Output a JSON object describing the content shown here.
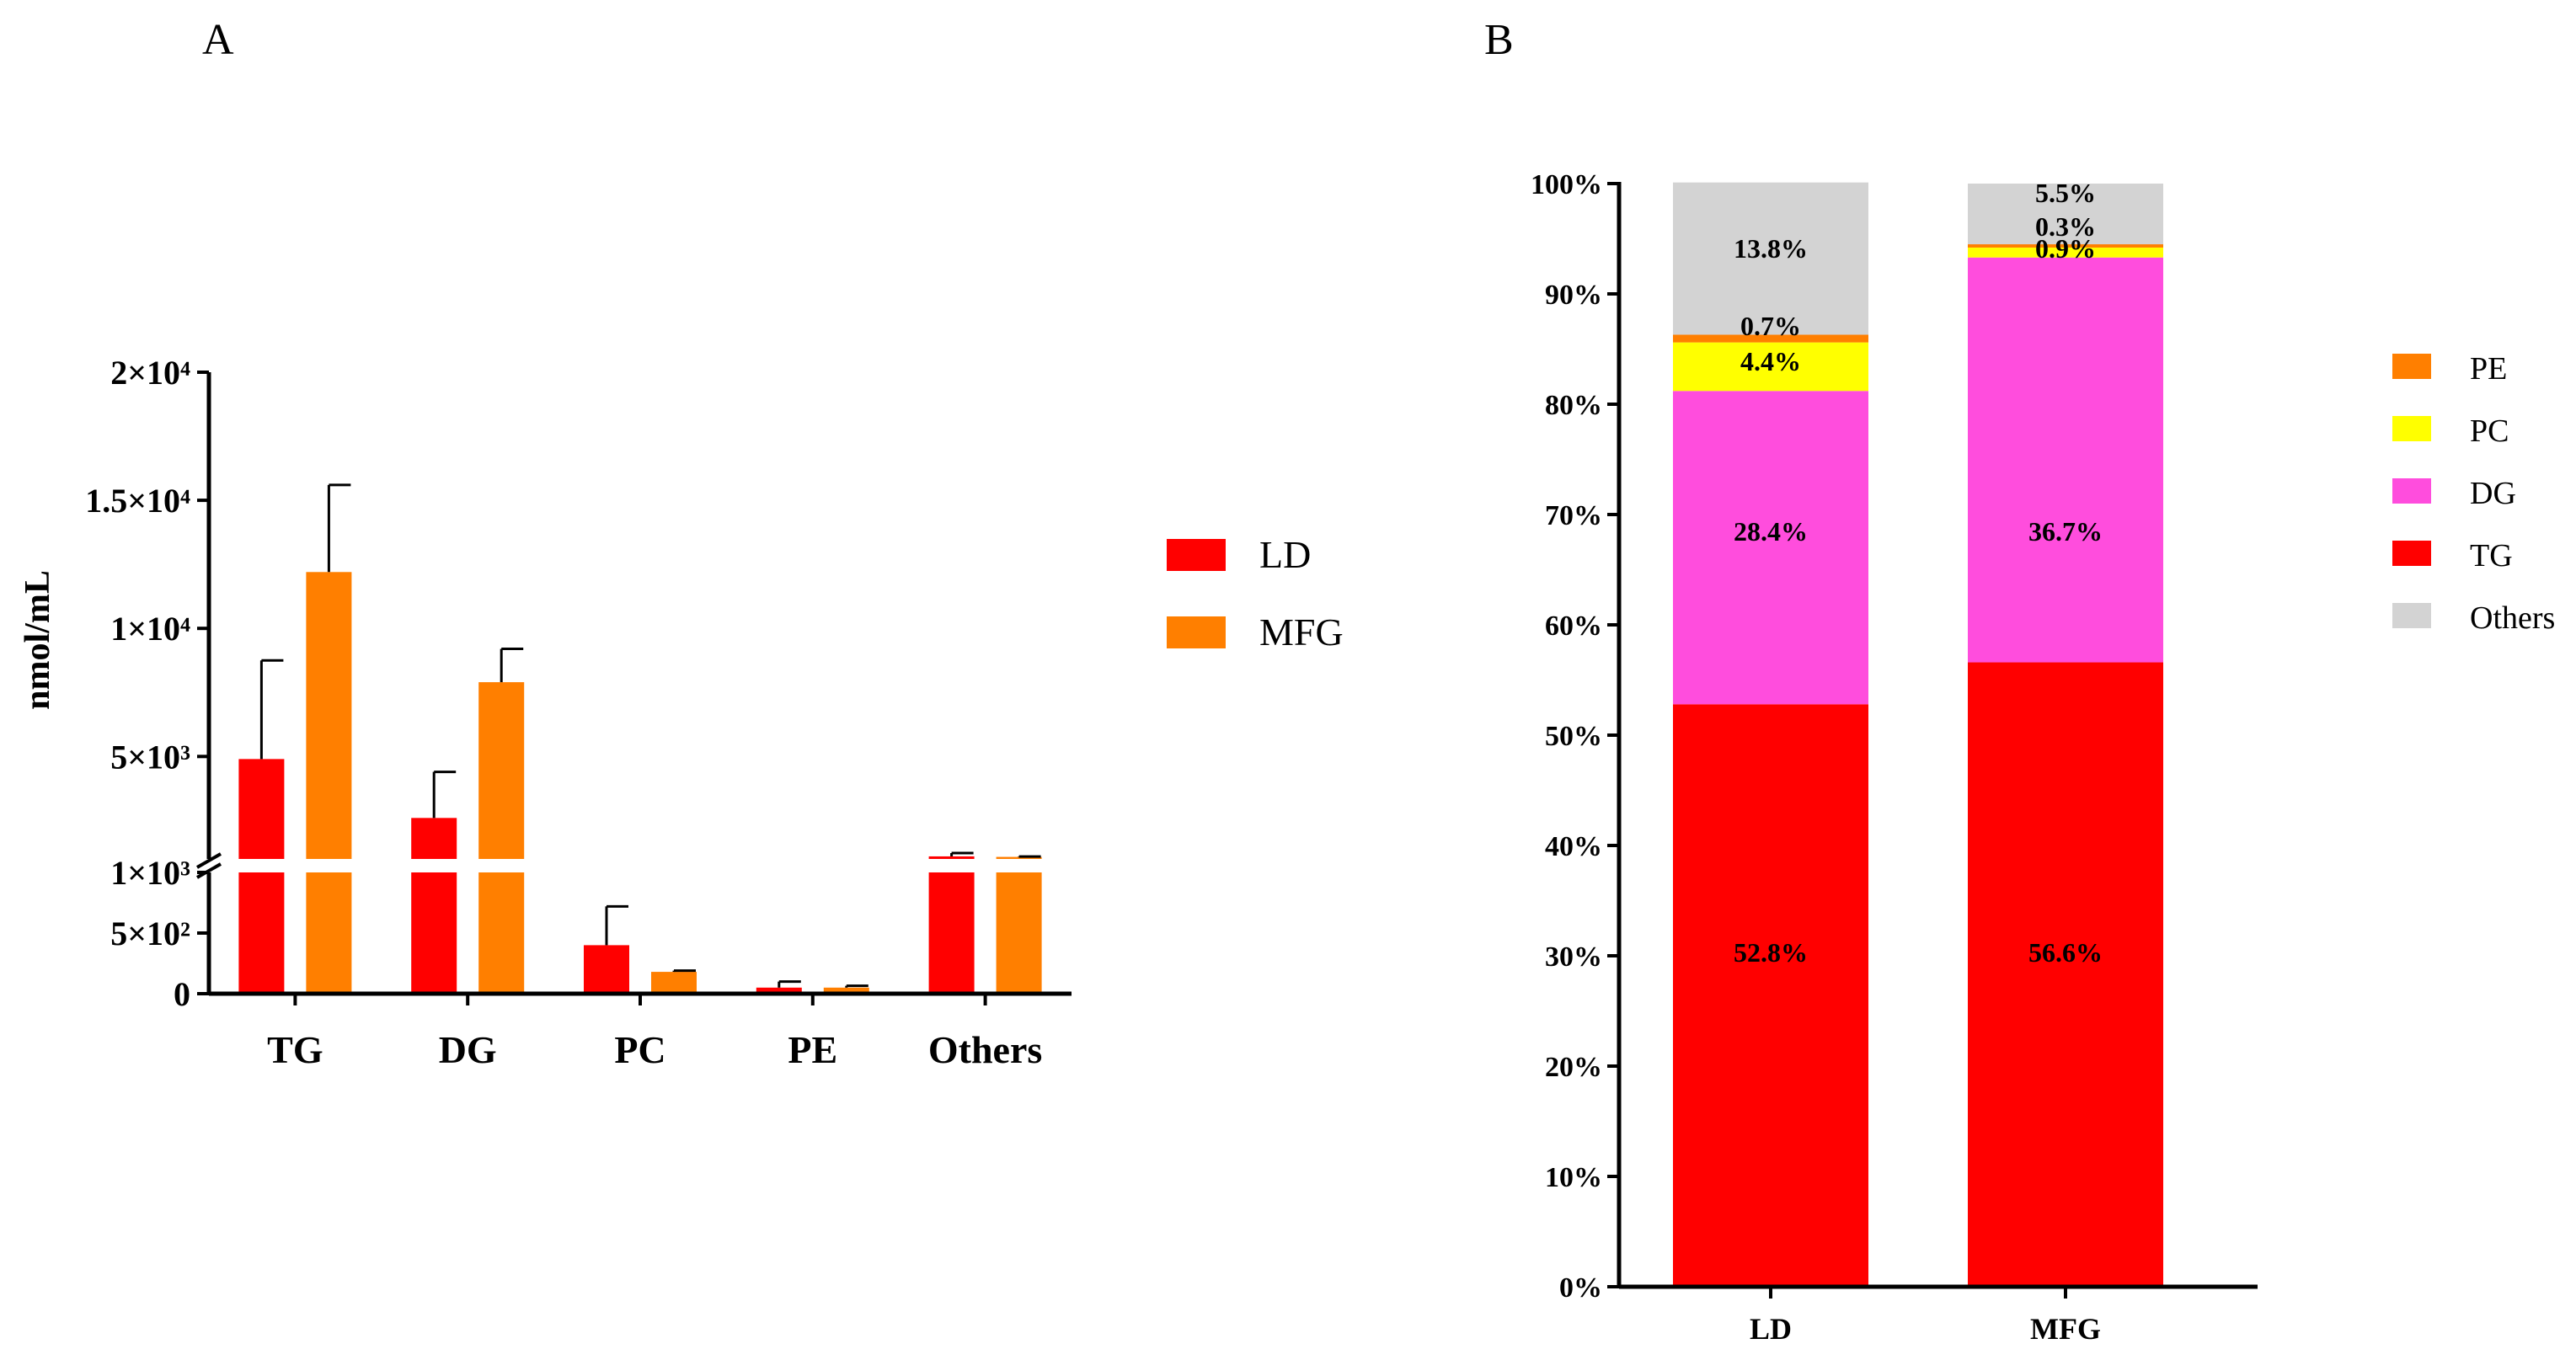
{
  "panel_a_letter": "A",
  "panel_b_letter": "B",
  "chart_data": [
    {
      "type": "bar",
      "panel": "A",
      "title": "",
      "xlabel": "",
      "ylabel": "nmol/mL",
      "categories": [
        "TG",
        "DG",
        "PC",
        "PE",
        "Others"
      ],
      "series": [
        {
          "name": "LD",
          "color": "#ff0000",
          "values": [
            4900,
            2600,
            400,
            50,
            1100
          ],
          "errors": [
            3850,
            1800,
            320,
            50,
            130
          ]
        },
        {
          "name": "MFG",
          "color": "#ff7f00",
          "values": [
            12200,
            7900,
            180,
            50,
            1080
          ],
          "errors": [
            3400,
            1300,
            10,
            15,
            15
          ]
        }
      ],
      "y_axis_broken": true,
      "y_segments": [
        {
          "range": [
            0,
            1000
          ]
        },
        {
          "range": [
            1000,
            20000
          ]
        }
      ],
      "y_ticks": [
        {
          "value": 0,
          "label": "0"
        },
        {
          "value": 500,
          "label": "5×10²"
        },
        {
          "value": 1000,
          "label": "1×10³"
        },
        {
          "value": 5000,
          "label": "5×10³"
        },
        {
          "value": 10000,
          "label": "1×10⁴"
        },
        {
          "value": 15000,
          "label": "1.5×10⁴"
        },
        {
          "value": 20000,
          "label": "2×10⁴"
        }
      ],
      "legend": {
        "position": "right",
        "entries": [
          "LD",
          "MFG"
        ]
      }
    },
    {
      "type": "bar",
      "stacked": true,
      "panel": "B",
      "title": "",
      "xlabel": "",
      "ylabel": "",
      "ylim": [
        0,
        100
      ],
      "y_ticks": [
        {
          "value": 0,
          "label": "0%"
        },
        {
          "value": 10,
          "label": "10%"
        },
        {
          "value": 20,
          "label": "20%"
        },
        {
          "value": 30,
          "label": "30%"
        },
        {
          "value": 40,
          "label": "40%"
        },
        {
          "value": 50,
          "label": "50%"
        },
        {
          "value": 60,
          "label": "60%"
        },
        {
          "value": 70,
          "label": "70%"
        },
        {
          "value": 80,
          "label": "80%"
        },
        {
          "value": 90,
          "label": "90%"
        },
        {
          "value": 100,
          "label": "100%"
        }
      ],
      "categories": [
        "LD",
        "MFG"
      ],
      "series": [
        {
          "name": "TG",
          "color": "#ff0000",
          "values": [
            52.8,
            56.6
          ],
          "labels": [
            "52.8%",
            "56.6%"
          ]
        },
        {
          "name": "DG",
          "color": "#ff4ddd",
          "values": [
            28.4,
            36.7
          ],
          "labels": [
            "28.4%",
            "36.7%"
          ]
        },
        {
          "name": "PC",
          "color": "#ffff00",
          "values": [
            4.4,
            0.9
          ],
          "labels": [
            "4.4%",
            "0.9%"
          ]
        },
        {
          "name": "PE",
          "color": "#ff7f00",
          "values": [
            0.7,
            0.3
          ],
          "labels": [
            "0.7%",
            "0.3%"
          ]
        },
        {
          "name": "Others",
          "color": "#d3d3d3",
          "values": [
            13.8,
            5.5
          ],
          "labels": [
            "13.8%",
            "5.5%"
          ]
        }
      ],
      "legend": {
        "position": "right",
        "entries": [
          "PE",
          "PC",
          "DG",
          "TG",
          "Others"
        ]
      }
    }
  ]
}
